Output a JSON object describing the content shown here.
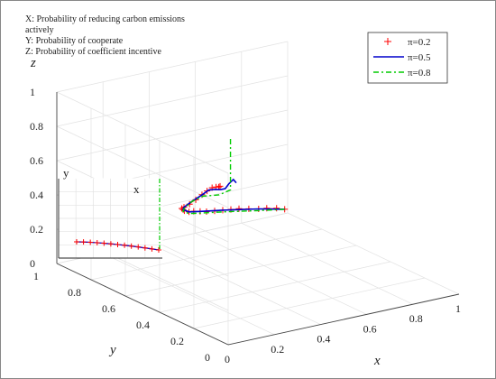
{
  "description": {
    "line_x": "X: Probability of reducing carbon emissions",
    "line_x_cont": "actively",
    "line_y": "Y: Probability of cooperate",
    "line_z": "Z: Probability of coefficient incentive"
  },
  "chart_data": {
    "type": "line3d",
    "title": "",
    "xlabel": "x",
    "ylabel": "y",
    "zlabel": "z",
    "xlim": [
      0,
      1
    ],
    "ylim": [
      0,
      1
    ],
    "zlim": [
      0,
      1
    ],
    "x_ticks": [
      "0",
      "0.2",
      "0.4",
      "0.6",
      "0.8",
      "1"
    ],
    "y_ticks": [
      "0",
      "0.2",
      "0.4",
      "0.6",
      "0.8",
      "1"
    ],
    "z_ticks": [
      "0",
      "0.2",
      "0.4",
      "0.6",
      "0.8",
      "1"
    ],
    "grid": true,
    "legend_position": "top-right",
    "series": [
      {
        "name": "π=0.2",
        "style": "red plus markers",
        "color": "#ff0000",
        "points": [
          [
            0.95,
            0.95,
            0.06
          ],
          [
            0.9,
            0.93,
            0.09
          ],
          [
            0.85,
            0.92,
            0.11
          ],
          [
            0.8,
            0.9,
            0.13
          ],
          [
            0.75,
            0.89,
            0.15
          ],
          [
            0.7,
            0.88,
            0.17
          ],
          [
            0.65,
            0.86,
            0.19
          ],
          [
            0.6,
            0.84,
            0.21
          ],
          [
            0.55,
            0.82,
            0.23
          ],
          [
            0.5,
            0.8,
            0.25
          ],
          [
            0.45,
            0.77,
            0.28
          ],
          [
            0.4,
            0.74,
            0.31
          ],
          [
            0.35,
            0.7,
            0.34
          ],
          [
            0.3,
            0.66,
            0.38
          ],
          [
            0.25,
            0.6,
            0.43
          ],
          [
            0.2,
            0.54,
            0.48
          ],
          [
            0.15,
            0.46,
            0.54
          ],
          [
            0.1,
            0.36,
            0.62
          ],
          [
            0.06,
            0.27,
            0.7
          ],
          [
            0.035,
            0.2,
            0.77
          ],
          [
            0.02,
            0.15,
            0.82
          ],
          [
            0.012,
            0.11,
            0.86
          ],
          [
            0.007,
            0.08,
            0.88
          ],
          [
            0.004,
            0.06,
            0.89
          ],
          [
            0.002,
            0.05,
            0.9
          ]
        ]
      },
      {
        "name": "π=0.5",
        "style": "solid blue line",
        "color": "#0000cc",
        "points": [
          [
            0.95,
            0.95,
            0.06
          ],
          [
            0.8,
            0.9,
            0.13
          ],
          [
            0.6,
            0.84,
            0.21
          ],
          [
            0.45,
            0.77,
            0.28
          ],
          [
            0.35,
            0.7,
            0.34
          ],
          [
            0.25,
            0.6,
            0.43
          ],
          [
            0.15,
            0.46,
            0.54
          ],
          [
            0.08,
            0.32,
            0.66
          ],
          [
            0.04,
            0.21,
            0.76
          ],
          [
            0.02,
            0.14,
            0.83
          ],
          [
            0.01,
            0.09,
            0.86
          ],
          [
            0.005,
            0.05,
            0.88
          ],
          [
            0.002,
            0.02,
            0.9
          ],
          [
            0.01,
            0.01,
            0.93
          ],
          [
            0.03,
            0.01,
            0.95
          ],
          [
            0.05,
            0.02,
            0.92
          ]
        ]
      },
      {
        "name": "π=0.8",
        "style": "dash-dot green line",
        "color": "#00cc00",
        "points": [
          [
            0.95,
            0.95,
            0.06
          ],
          [
            0.8,
            0.9,
            0.12
          ],
          [
            0.6,
            0.84,
            0.2
          ],
          [
            0.45,
            0.77,
            0.27
          ],
          [
            0.35,
            0.7,
            0.33
          ],
          [
            0.25,
            0.6,
            0.42
          ],
          [
            0.15,
            0.46,
            0.53
          ],
          [
            0.08,
            0.32,
            0.66
          ],
          [
            0.04,
            0.2,
            0.76
          ],
          [
            0.02,
            0.08,
            0.83
          ],
          [
            0.01,
            0.0,
            0.9
          ],
          [
            0.01,
            0.0,
            1.0
          ],
          [
            0.01,
            0.0,
            1.1
          ],
          [
            0.01,
            0.0,
            1.2
          ]
        ]
      }
    ]
  }
}
